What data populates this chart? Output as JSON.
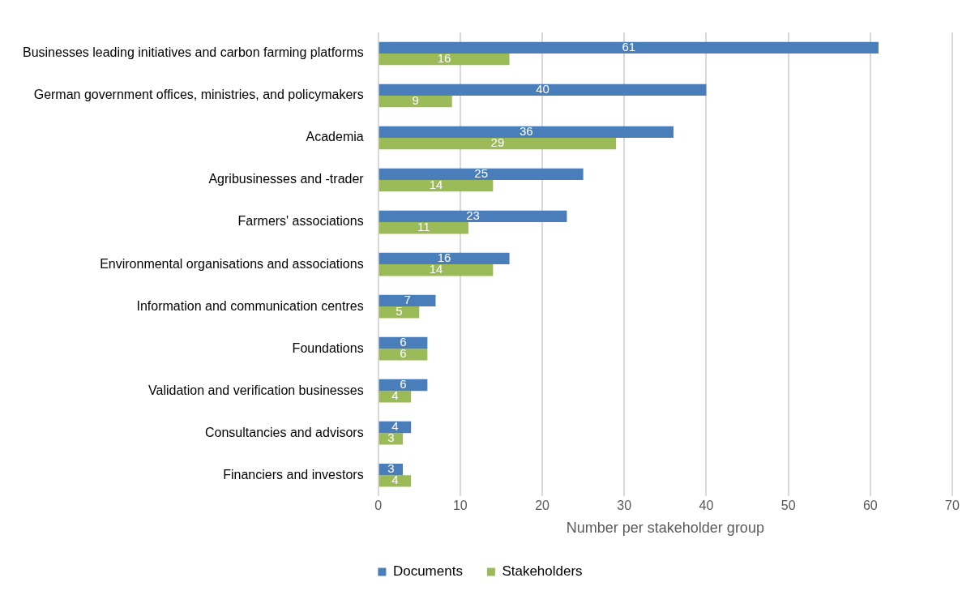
{
  "chart_data": {
    "type": "bar",
    "orientation": "horizontal",
    "xlabel": "Number per stakeholder group",
    "categories": [
      "Businesses leading initiatives and carbon farming platforms",
      "German government offices, ministries, and policymakers",
      "Academia",
      "Agribusinesses and -trader",
      "Farmers' associations",
      "Environmental organisations and associations",
      "Information and communication centres",
      "Foundations",
      "Validation and verification businesses",
      "Consultancies and advisors",
      "Financiers and investors"
    ],
    "series": [
      {
        "name": "Documents",
        "color": "#4a7ebb",
        "values": [
          61,
          40,
          36,
          25,
          23,
          16,
          7,
          6,
          6,
          4,
          3
        ]
      },
      {
        "name": "Stakeholders",
        "color": "#9bbb59",
        "values": [
          16,
          9,
          29,
          14,
          11,
          14,
          5,
          6,
          4,
          3,
          4
        ]
      }
    ],
    "xlim": [
      0,
      70
    ],
    "xticks": [
      0,
      10,
      20,
      30,
      40,
      50,
      60,
      70
    ],
    "grid": "x",
    "legend": "bottom",
    "data_labels": true
  }
}
